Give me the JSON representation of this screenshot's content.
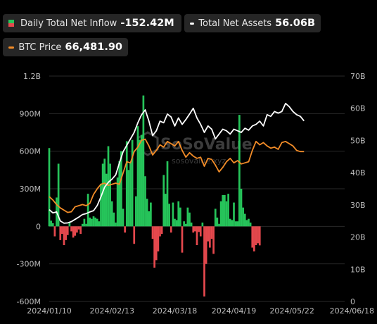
{
  "legend": {
    "inflow": {
      "label": "Daily Total Net Inflow",
      "value": "-152.42M"
    },
    "assets": {
      "label": "Total Net Assets",
      "value": "56.06B"
    },
    "btc": {
      "label": "BTC Price",
      "value": "66,481.90"
    }
  },
  "watermark": {
    "brand": "SoSoValue",
    "url": "sosovalue.xyz"
  },
  "colors": {
    "positive_bar": "#26c45a",
    "negative_bar": "#e5484d",
    "assets_line": "#ffffff",
    "btc_line": "#f28c28",
    "grid": "#2a2a2a",
    "background": "#000000"
  },
  "chart_data": {
    "type": "bar",
    "left_axis": {
      "min": -600,
      "max": 1200,
      "ticks": [
        -600,
        -300,
        0,
        300,
        600,
        900,
        1200
      ],
      "tick_labels": [
        "-600M",
        "-300M",
        "0",
        "300M",
        "600M",
        "900M",
        "1.2B"
      ]
    },
    "right_axis": {
      "min": 0,
      "max": 70,
      "ticks": [
        0,
        10,
        20,
        30,
        40,
        50,
        60,
        70
      ],
      "tick_labels": [
        "0",
        "10B",
        "20B",
        "30B",
        "40B",
        "50B",
        "60B",
        "70B"
      ]
    },
    "btc_price_scale": {
      "min": 0,
      "max": 100000
    },
    "x_tick_labels": [
      "2024/01/10",
      "2024/02/13",
      "2024/03/18",
      "2024/04/19",
      "2024/05/22",
      "2024/06/18"
    ],
    "x_tick_day_index": [
      0,
      34,
      68,
      100,
      133,
      160
    ],
    "grid": true,
    "series": [
      {
        "name": "Daily Total Net Inflow",
        "kind": "bar",
        "axis": "left",
        "unit": "M",
        "points": [
          [
            0,
            625
          ],
          [
            1,
            45
          ],
          [
            2,
            25
          ],
          [
            3,
            -80
          ],
          [
            4,
            230
          ],
          [
            5,
            500
          ],
          [
            6,
            -110
          ],
          [
            7,
            -60
          ],
          [
            8,
            -150
          ],
          [
            9,
            -110
          ],
          [
            10,
            -70
          ],
          [
            11,
            30
          ],
          [
            12,
            -40
          ],
          [
            13,
            -90
          ],
          [
            14,
            -75
          ],
          [
            15,
            -50
          ],
          [
            16,
            -25
          ],
          [
            17,
            -60
          ],
          [
            18,
            20
          ],
          [
            19,
            60
          ],
          [
            20,
            20
          ],
          [
            21,
            260
          ],
          [
            22,
            70
          ],
          [
            23,
            60
          ],
          [
            24,
            80
          ],
          [
            25,
            70
          ],
          [
            26,
            60
          ],
          [
            27,
            40
          ],
          [
            28,
            340
          ],
          [
            29,
            500
          ],
          [
            30,
            540
          ],
          [
            31,
            420
          ],
          [
            32,
            640
          ],
          [
            33,
            500
          ],
          [
            34,
            200
          ],
          [
            35,
            110
          ],
          [
            36,
            30
          ],
          [
            37,
            390
          ],
          [
            38,
            520
          ],
          [
            39,
            600
          ],
          [
            40,
            140
          ],
          [
            41,
            -50
          ],
          [
            42,
            680
          ],
          [
            43,
            450
          ],
          [
            44,
            510
          ],
          [
            45,
            690
          ],
          [
            46,
            -140
          ],
          [
            47,
            240
          ],
          [
            48,
            800
          ],
          [
            49,
            690
          ],
          [
            50,
            730
          ],
          [
            51,
            1045
          ],
          [
            52,
            400
          ],
          [
            53,
            220
          ],
          [
            54,
            120
          ],
          [
            55,
            190
          ],
          [
            56,
            -100
          ],
          [
            57,
            -330
          ],
          [
            58,
            -270
          ],
          [
            59,
            -200
          ],
          [
            60,
            -80
          ],
          [
            61,
            -60
          ],
          [
            62,
            410
          ],
          [
            63,
            260
          ],
          [
            64,
            520
          ],
          [
            65,
            180
          ],
          [
            66,
            -50
          ],
          [
            67,
            190
          ],
          [
            68,
            60
          ],
          [
            69,
            50
          ],
          [
            70,
            200
          ],
          [
            71,
            150
          ],
          [
            72,
            -210
          ],
          [
            73,
            40
          ],
          [
            74,
            20
          ],
          [
            75,
            150
          ],
          [
            76,
            110
          ],
          [
            77,
            30
          ],
          [
            78,
            -50
          ],
          [
            79,
            -40
          ],
          [
            80,
            -150
          ],
          [
            81,
            -45
          ],
          [
            82,
            -80
          ],
          [
            83,
            30
          ],
          [
            84,
            -560
          ],
          [
            85,
            -300
          ],
          [
            86,
            -120
          ],
          [
            87,
            -170
          ],
          [
            88,
            -100
          ],
          [
            89,
            -220
          ],
          [
            90,
            140
          ],
          [
            91,
            70
          ],
          [
            92,
            20
          ],
          [
            93,
            200
          ],
          [
            94,
            250
          ],
          [
            95,
            250
          ],
          [
            96,
            200
          ],
          [
            97,
            260
          ],
          [
            98,
            60
          ],
          [
            99,
            50
          ],
          [
            100,
            190
          ],
          [
            101,
            40
          ],
          [
            102,
            40
          ],
          [
            103,
            890
          ],
          [
            104,
            300
          ],
          [
            105,
            150
          ],
          [
            106,
            100
          ],
          [
            107,
            50
          ],
          [
            108,
            60
          ],
          [
            109,
            30
          ],
          [
            110,
            -170
          ],
          [
            111,
            -200
          ],
          [
            112,
            -150
          ],
          [
            113,
            -135
          ],
          [
            114,
            -152
          ]
        ]
      },
      {
        "name": "Total Net Assets",
        "kind": "line",
        "axis": "right",
        "unit": "B",
        "points": [
          [
            0,
            28.5
          ],
          [
            2,
            27.5
          ],
          [
            4,
            27.8
          ],
          [
            6,
            25.0
          ],
          [
            8,
            24.3
          ],
          [
            10,
            24.4
          ],
          [
            12,
            24.8
          ],
          [
            14,
            25.5
          ],
          [
            16,
            26.2
          ],
          [
            18,
            27.0
          ],
          [
            20,
            27.3
          ],
          [
            22,
            27.8
          ],
          [
            24,
            28.2
          ],
          [
            26,
            29.8
          ],
          [
            28,
            32.5
          ],
          [
            30,
            35.5
          ],
          [
            32,
            37.0
          ],
          [
            34,
            38.0
          ],
          [
            36,
            39.3
          ],
          [
            38,
            43.0
          ],
          [
            40,
            46.5
          ],
          [
            42,
            48.5
          ],
          [
            44,
            50.5
          ],
          [
            46,
            52.5
          ],
          [
            48,
            55.5
          ],
          [
            50,
            58.0
          ],
          [
            52,
            59.5
          ],
          [
            54,
            56.0
          ],
          [
            56,
            51.5
          ],
          [
            58,
            53.0
          ],
          [
            60,
            56.0
          ],
          [
            62,
            55.5
          ],
          [
            64,
            58.2
          ],
          [
            66,
            57.3
          ],
          [
            68,
            54.5
          ],
          [
            70,
            57.0
          ],
          [
            72,
            55.0
          ],
          [
            74,
            56.5
          ],
          [
            76,
            58.2
          ],
          [
            78,
            60.0
          ],
          [
            80,
            57.0
          ],
          [
            82,
            55.0
          ],
          [
            84,
            52.5
          ],
          [
            86,
            54.5
          ],
          [
            88,
            53.5
          ],
          [
            90,
            50.5
          ],
          [
            92,
            52.0
          ],
          [
            94,
            53.5
          ],
          [
            96,
            53.0
          ],
          [
            98,
            52.0
          ],
          [
            100,
            53.5
          ],
          [
            102,
            53.0
          ],
          [
            104,
            52.5
          ],
          [
            106,
            53.8
          ],
          [
            108,
            53.2
          ],
          [
            110,
            54.5
          ],
          [
            112,
            55.0
          ],
          [
            114,
            56.0
          ],
          [
            116,
            54.5
          ],
          [
            118,
            58.0
          ],
          [
            120,
            57.5
          ],
          [
            122,
            59.0
          ],
          [
            124,
            58.5
          ],
          [
            126,
            59.0
          ],
          [
            128,
            61.5
          ],
          [
            130,
            60.5
          ],
          [
            132,
            59.0
          ],
          [
            134,
            58.0
          ],
          [
            136,
            57.5
          ],
          [
            138,
            56.06
          ]
        ]
      },
      {
        "name": "BTC Price",
        "kind": "line",
        "axis": "right",
        "unit": "USD",
        "points": [
          [
            0,
            46500
          ],
          [
            2,
            45000
          ],
          [
            4,
            43000
          ],
          [
            6,
            41500
          ],
          [
            8,
            40500
          ],
          [
            10,
            39500
          ],
          [
            12,
            39800
          ],
          [
            14,
            42000
          ],
          [
            16,
            42500
          ],
          [
            18,
            43000
          ],
          [
            20,
            42500
          ],
          [
            22,
            43500
          ],
          [
            24,
            47500
          ],
          [
            26,
            50000
          ],
          [
            28,
            52000
          ],
          [
            30,
            52500
          ],
          [
            32,
            51500
          ],
          [
            34,
            52000
          ],
          [
            36,
            52500
          ],
          [
            38,
            52000
          ],
          [
            40,
            57000
          ],
          [
            42,
            62000
          ],
          [
            44,
            61500
          ],
          [
            46,
            66500
          ],
          [
            48,
            68500
          ],
          [
            50,
            71500
          ],
          [
            52,
            72000
          ],
          [
            54,
            69000
          ],
          [
            56,
            65000
          ],
          [
            58,
            67000
          ],
          [
            60,
            69500
          ],
          [
            62,
            68500
          ],
          [
            64,
            71000
          ],
          [
            66,
            70000
          ],
          [
            68,
            69000
          ],
          [
            70,
            71000
          ],
          [
            72,
            67000
          ],
          [
            74,
            64000
          ],
          [
            76,
            66000
          ],
          [
            78,
            64500
          ],
          [
            80,
            63500
          ],
          [
            82,
            64000
          ],
          [
            84,
            60000
          ],
          [
            86,
            63500
          ],
          [
            88,
            63000
          ],
          [
            90,
            60500
          ],
          [
            92,
            57500
          ],
          [
            94,
            59500
          ],
          [
            96,
            62000
          ],
          [
            98,
            63500
          ],
          [
            100,
            61500
          ],
          [
            102,
            62500
          ],
          [
            104,
            61000
          ],
          [
            106,
            61500
          ],
          [
            108,
            62000
          ],
          [
            110,
            67000
          ],
          [
            112,
            71000
          ],
          [
            114,
            69500
          ],
          [
            116,
            70500
          ],
          [
            118,
            69000
          ],
          [
            120,
            68000
          ],
          [
            122,
            68500
          ],
          [
            124,
            67500
          ],
          [
            126,
            70500
          ],
          [
            128,
            71000
          ],
          [
            130,
            70000
          ],
          [
            132,
            69000
          ],
          [
            134,
            67000
          ],
          [
            136,
            66500
          ],
          [
            138,
            66481.9
          ]
        ]
      }
    ]
  }
}
